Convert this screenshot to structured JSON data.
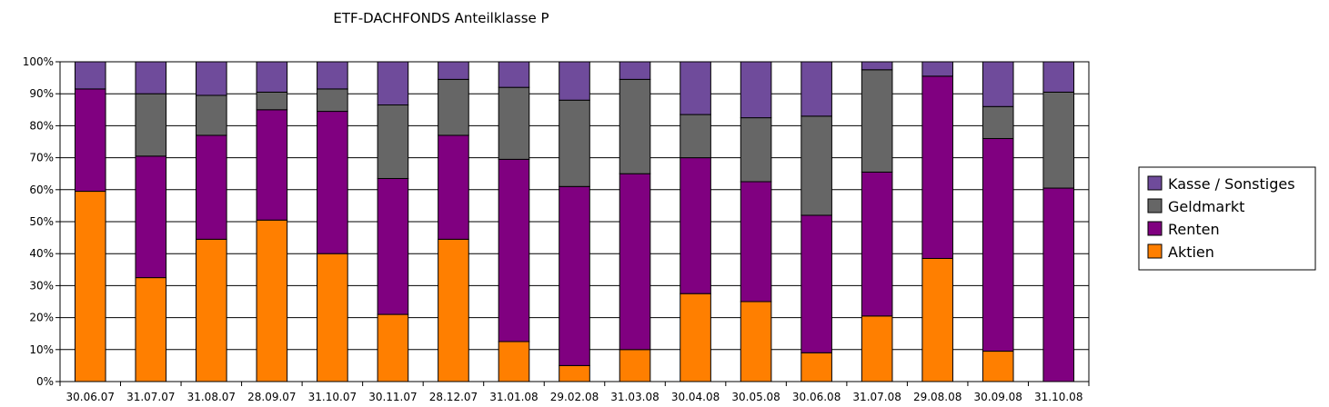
{
  "chart_data": {
    "type": "bar",
    "stacked": true,
    "percent_stacked": true,
    "title": "ETF-DACHFONDS Anteilklasse P",
    "xlabel": "",
    "ylabel": "",
    "ylim": [
      0,
      100
    ],
    "ytick_labels": [
      "0%",
      "10%",
      "20%",
      "30%",
      "40%",
      "50%",
      "60%",
      "70%",
      "80%",
      "90%",
      "100%"
    ],
    "grid": true,
    "legend_position": "right",
    "categories": [
      "30.06.07",
      "31.07.07",
      "31.08.07",
      "28.09.07",
      "31.10.07",
      "30.11.07",
      "28.12.07",
      "31.01.08",
      "29.02.08",
      "31.03.08",
      "30.04.08",
      "30.05.08",
      "30.06.08",
      "31.07.08",
      "29.08.08",
      "30.09.08",
      "31.10.08"
    ],
    "series": [
      {
        "name": "Aktien",
        "color": "#ff7f00",
        "values": [
          59.5,
          32.5,
          44.5,
          50.5,
          40,
          21,
          44.5,
          12.5,
          5,
          10,
          27.5,
          25,
          9,
          20.5,
          38.5,
          9.5,
          0
        ]
      },
      {
        "name": "Renten",
        "color": "#800080",
        "values": [
          32,
          38,
          32.5,
          34.5,
          44.5,
          42.5,
          32.5,
          57,
          56,
          55,
          42.5,
          37.5,
          43,
          45,
          57,
          66.5,
          60.5
        ]
      },
      {
        "name": "Geldmarkt",
        "color": "#666666",
        "values": [
          0,
          19.5,
          12.5,
          5.5,
          7,
          23,
          17.5,
          22.5,
          27,
          29.5,
          13.5,
          20,
          31,
          32,
          0,
          10,
          30
        ]
      },
      {
        "name": "Kasse / Sonstiges",
        "color": "#6f4b9b",
        "values": [
          8.5,
          10,
          10.5,
          9.5,
          8.5,
          13.5,
          5.5,
          8,
          12,
          5.5,
          16.5,
          17.5,
          17,
          2.5,
          4.5,
          14,
          9.5
        ]
      }
    ],
    "legend_order": [
      "Kasse / Sonstiges",
      "Geldmarkt",
      "Renten",
      "Aktien"
    ]
  }
}
